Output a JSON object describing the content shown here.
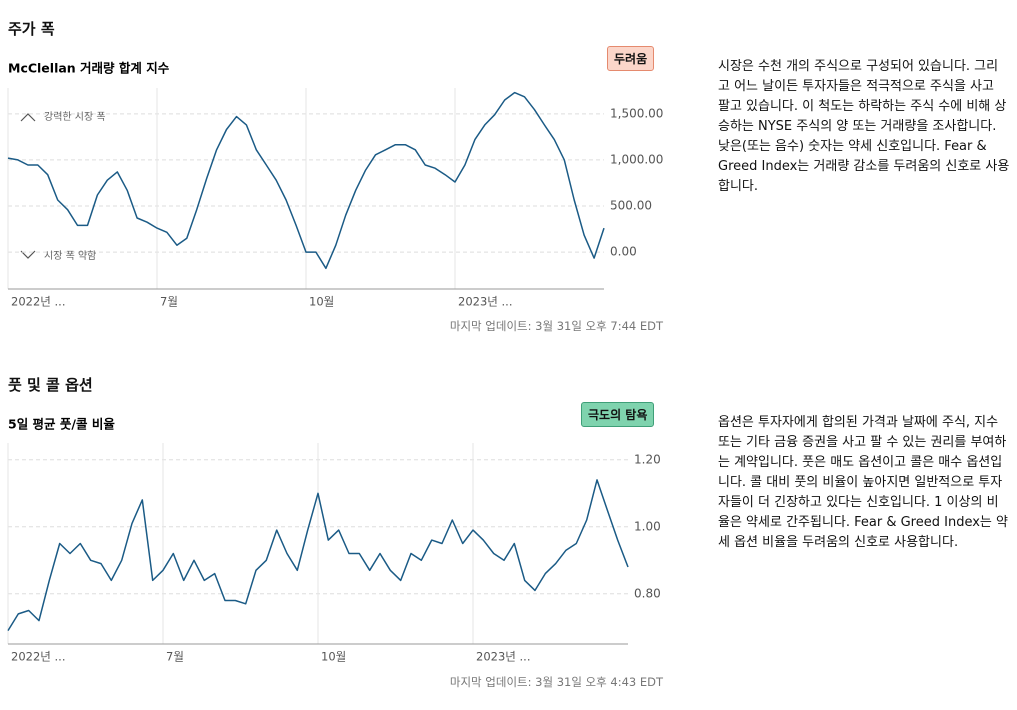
{
  "sections": [
    {
      "heading": "주가 폭",
      "badge": "두려움",
      "description": "시장은 수천 개의 주식으로 구성되어 있습니다. 그리고 어느 날이든 투자자들은 적극적으로 주식을 사고 팔고 있습니다. 이 척도는 하락하는 주식 수에 비해 상승하는 NYSE 주식의 양 또는 거래량을 조사합니다. 낮은(또는 음수) 숫자는 약세 신호입니다. Fear & Greed Index는 거래량 감소를 두려움의 신호로 사용합니다.",
      "updated": "마지막 업데이트: 3월 31일 오후 7:44 EDT"
    },
    {
      "heading": "풋 및 콜 옵션",
      "badge": "극도의 탐욕",
      "description": "옵션은 투자자에게 합의된 가격과 날짜에 주식, 지수 또는 기타 금융 증권을 사고 팔 수 있는 권리를 부여하는 계약입니다. 풋은 매도 옵션이고 콜은 매수 옵션입니다. 콜 대비 풋의 비율이 높아지면 일반적으로 투자자들이 더 긴장하고 있다는 신호입니다. 1 이상의 비율은 약세로 간주됩니다. Fear & Greed Index는 약세 옵션 비율을 두려움의 신호로 사용합니다.",
      "updated": "마지막 업데이트: 3월 31일 오후 4:43 EDT"
    }
  ],
  "chart_data": [
    {
      "type": "line",
      "title": "McClellan 거래량 합계 지수",
      "annotations": [
        "강력한 시장 폭",
        "시장 폭 약함"
      ],
      "categories": [
        "2022년 ...",
        null,
        null,
        null,
        null,
        null,
        null,
        null,
        null,
        null,
        null,
        null,
        null,
        null,
        null,
        "7월",
        null,
        null,
        null,
        null,
        null,
        null,
        null,
        null,
        null,
        null,
        null,
        null,
        null,
        null,
        "10월",
        null,
        null,
        null,
        null,
        null,
        null,
        null,
        null,
        null,
        null,
        null,
        null,
        null,
        null,
        "2023년 ...",
        null,
        null,
        null,
        null,
        null,
        null,
        null,
        null,
        null,
        null,
        null,
        null,
        null,
        null,
        null
      ],
      "values": [
        1020,
        1000,
        945,
        945,
        840,
        565,
        460,
        290,
        290,
        620,
        780,
        870,
        670,
        370,
        325,
        260,
        215,
        75,
        150,
        460,
        800,
        1110,
        1330,
        1470,
        1380,
        1110,
        945,
        780,
        565,
        290,
        0,
        0,
        -175,
        75,
        400,
        670,
        890,
        1055,
        1110,
        1165,
        1165,
        1110,
        945,
        910,
        840,
        760,
        945,
        1220,
        1380,
        1490,
        1650,
        1730,
        1685,
        1545,
        1380,
        1220,
        1000,
        565,
        185,
        -65,
        260
      ],
      "color": "#1b5b86",
      "ylim": [
        -400,
        1780
      ],
      "yticks": [
        {
          "value": 0,
          "label": "0.00"
        },
        {
          "value": 500,
          "label": "500.00"
        },
        {
          "value": 1000,
          "label": "1,000.00"
        },
        {
          "value": 1500,
          "label": "1,500.00"
        }
      ],
      "grid": true
    },
    {
      "type": "line",
      "title": "5일 평균 풋/콜 비율",
      "categories": [
        "2022년 ...",
        null,
        null,
        null,
        null,
        null,
        null,
        null,
        null,
        null,
        null,
        null,
        null,
        null,
        null,
        "7월",
        null,
        null,
        null,
        null,
        null,
        null,
        null,
        null,
        null,
        null,
        null,
        null,
        null,
        null,
        "10월",
        null,
        null,
        null,
        null,
        null,
        null,
        null,
        null,
        null,
        null,
        null,
        null,
        null,
        null,
        "2023년 ...",
        null,
        null,
        null,
        null,
        null,
        null,
        null,
        null,
        null,
        null,
        null,
        null,
        null,
        null,
        null
      ],
      "values": [
        0.69,
        0.74,
        0.75,
        0.72,
        0.84,
        0.95,
        0.92,
        0.95,
        0.9,
        0.89,
        0.84,
        0.9,
        1.01,
        1.08,
        0.84,
        0.87,
        0.92,
        0.84,
        0.9,
        0.84,
        0.86,
        0.78,
        0.78,
        0.77,
        0.87,
        0.9,
        0.99,
        0.92,
        0.87,
        0.99,
        1.1,
        0.96,
        0.99,
        0.92,
        0.92,
        0.87,
        0.92,
        0.87,
        0.84,
        0.92,
        0.9,
        0.96,
        0.95,
        1.02,
        0.95,
        0.99,
        0.96,
        0.92,
        0.9,
        0.95,
        0.84,
        0.81,
        0.86,
        0.89,
        0.93,
        0.95,
        1.02,
        1.14,
        1.05,
        0.96,
        0.88
      ],
      "color": "#1b5b86",
      "ylim": [
        0.65,
        1.25
      ],
      "yticks": [
        {
          "value": 0.8,
          "label": "0.80"
        },
        {
          "value": 1.0,
          "label": "1.00"
        },
        {
          "value": 1.2,
          "label": "1.20"
        }
      ],
      "grid": true
    }
  ]
}
